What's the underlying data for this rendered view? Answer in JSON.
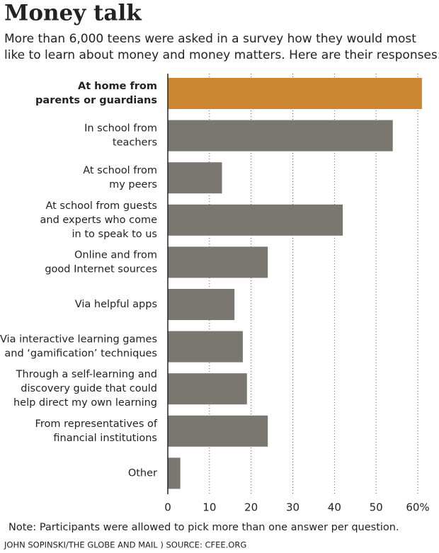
{
  "chart_data": {
    "type": "barh",
    "title": "Money talk",
    "subtitle": [
      "More than 6,000 teens were asked in a survey how they would most",
      "like to learn about money and money matters. Here are their responses:"
    ],
    "categories": [
      [
        "At home from",
        "parents or guardians"
      ],
      [
        "In school from",
        "teachers"
      ],
      [
        "At school from",
        "my peers"
      ],
      [
        "At school from guests",
        "and experts who come",
        "in to speak to us"
      ],
      [
        "Online and from",
        "good Internet sources"
      ],
      [
        "Via helpful apps"
      ],
      [
        "Via interactive learning games",
        "and ‘gamification’ techniques"
      ],
      [
        "Through a self-learning and",
        "discovery guide that could",
        "help direct my own learning"
      ],
      [
        "From representatives of",
        "financial institutions"
      ],
      [
        "Other"
      ]
    ],
    "values": [
      61,
      54,
      13,
      42,
      24,
      16,
      18,
      19,
      24,
      3
    ],
    "color": "#7a7670",
    "highlight_color": "#cc8630",
    "highlight": 0,
    "xlim": [
      0,
      60
    ],
    "xticks": [
      0,
      10,
      20,
      30,
      40,
      50,
      {
        "value": 60,
        "label": "60%"
      }
    ],
    "grid": true,
    "note": "Note: Participants were allowed to pick more than one answer per question.",
    "credit": "JOHN SOPINSKI/THE GLOBE AND MAIL ) SOURCE: CFEE.ORG"
  }
}
